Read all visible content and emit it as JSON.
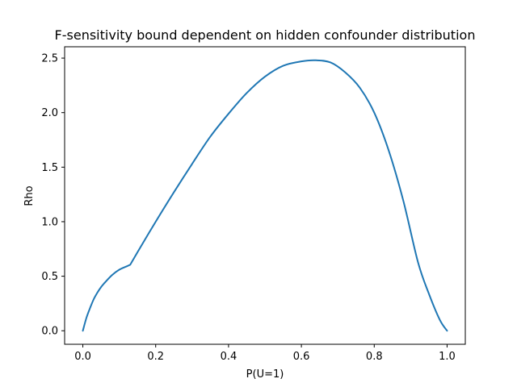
{
  "chart_data": {
    "type": "line",
    "title": "F-sensitivity bound dependent on hidden confounder distribution",
    "xlabel": "P(U=1)",
    "ylabel": "Rho",
    "xlim": [
      -0.05,
      1.05
    ],
    "ylim": [
      -0.124,
      2.604
    ],
    "grid": false,
    "xticks": [
      {
        "value": 0.0,
        "label": "0.0"
      },
      {
        "value": 0.2,
        "label": "0.2"
      },
      {
        "value": 0.4,
        "label": "0.4"
      },
      {
        "value": 0.6,
        "label": "0.6"
      },
      {
        "value": 0.8,
        "label": "0.8"
      },
      {
        "value": 1.0,
        "label": "1.0"
      }
    ],
    "yticks": [
      {
        "value": 0.0,
        "label": "0.0"
      },
      {
        "value": 0.5,
        "label": "0.5"
      },
      {
        "value": 1.0,
        "label": "1.0"
      },
      {
        "value": 1.5,
        "label": "1.5"
      },
      {
        "value": 2.0,
        "label": "2.0"
      },
      {
        "value": 2.5,
        "label": "2.5"
      }
    ],
    "series": [
      {
        "color": "#1f77b4",
        "x": [
          0.0,
          0.01,
          0.02,
          0.03,
          0.04,
          0.05,
          0.06,
          0.08,
          0.1,
          0.12,
          0.13,
          0.15,
          0.2,
          0.25,
          0.3,
          0.35,
          0.4,
          0.45,
          0.5,
          0.55,
          0.6,
          0.64,
          0.68,
          0.72,
          0.76,
          0.8,
          0.84,
          0.88,
          0.92,
          0.95,
          0.98,
          1.0
        ],
        "y": [
          0.0,
          0.12,
          0.21,
          0.29,
          0.35,
          0.4,
          0.44,
          0.51,
          0.56,
          0.59,
          0.605,
          0.72,
          1.0,
          1.27,
          1.53,
          1.78,
          1.99,
          2.18,
          2.33,
          2.43,
          2.47,
          2.48,
          2.46,
          2.37,
          2.23,
          2.0,
          1.65,
          1.19,
          0.63,
          0.34,
          0.1,
          0.0
        ]
      }
    ]
  }
}
